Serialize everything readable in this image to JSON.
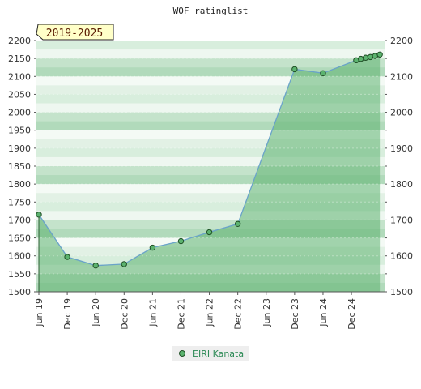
{
  "chart_data": {
    "type": "area",
    "title": "WOF ratinglist",
    "period_badge": "2019-2025",
    "xlabel": "",
    "ylabel": "",
    "ylim": [
      1500,
      2200
    ],
    "y_ticks": [
      1500,
      1550,
      1600,
      1650,
      1700,
      1750,
      1800,
      1850,
      1900,
      1950,
      2000,
      2050,
      2100,
      2150,
      2200
    ],
    "y_ticks_right": [
      1500,
      1600,
      1700,
      1800,
      1900,
      2000,
      2100,
      2200
    ],
    "x_ticks": [
      "Jun 19",
      "Dec 19",
      "Jun 20",
      "Dec 20",
      "Jun 21",
      "Dec 21",
      "Jun 22",
      "Dec 22",
      "Jun 23",
      "Dec 23",
      "Jun 24",
      "Dec 24"
    ],
    "x_range": [
      "Jun 19",
      "Jul 25"
    ],
    "grid": true,
    "legend_position": "bottom-center",
    "series": [
      {
        "name": "EIRI Kanata",
        "color": "#6aa3c9",
        "fill": "#5cb36f",
        "points": [
          {
            "x": "Jun 19",
            "y": 1715
          },
          {
            "x": "Dec 19",
            "y": 1597
          },
          {
            "x": "Jun 20",
            "y": 1573
          },
          {
            "x": "Dec 20",
            "y": 1577
          },
          {
            "x": "Jun 21",
            "y": 1623
          },
          {
            "x": "Dec 21",
            "y": 1641
          },
          {
            "x": "Jun 22",
            "y": 1666
          },
          {
            "x": "Dec 22",
            "y": 1689
          },
          {
            "x": "Dec 23",
            "y": 2120
          },
          {
            "x": "Jun 24",
            "y": 2109
          },
          {
            "x": "Jan 25",
            "y": 2145
          },
          {
            "x": "Feb 25",
            "y": 2149
          },
          {
            "x": "Mar 25",
            "y": 2152
          },
          {
            "x": "Apr 25",
            "y": 2154
          },
          {
            "x": "May 25",
            "y": 2157
          },
          {
            "x": "Jun 25",
            "y": 2161
          }
        ]
      }
    ]
  }
}
